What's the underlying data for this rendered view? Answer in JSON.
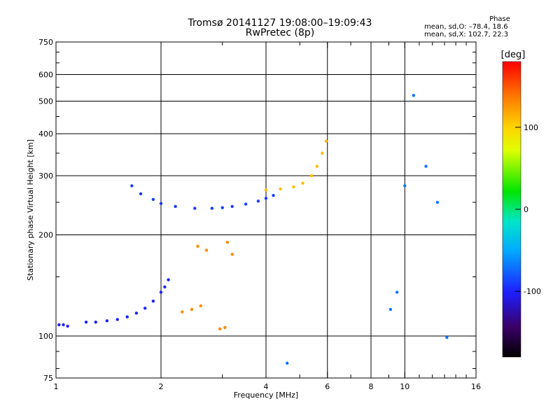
{
  "title": {
    "line1": "Tromsø 20141127 19:08:00–19:09:43",
    "line2": "RwPretec (8p)"
  },
  "phase_info": {
    "title": "Phase",
    "line1": "mean, sd,O: –78.4, 18.6",
    "line2": "mean, sd,X: 102.7, 22.3"
  },
  "chart_data": {
    "type": "scatter",
    "title": "Tromsø 20141127 19:08:00–19:09:43",
    "subtitle": "RwPretec (8p)",
    "xlabel": "Frequency [MHz]",
    "ylabel": "Stationary phase Virtual Height [km]",
    "x_scale": "log",
    "y_scale": "log",
    "xlim": [
      1,
      16
    ],
    "ylim": [
      75,
      750
    ],
    "x_ticks": [
      {
        "value": 1,
        "label": "1"
      },
      {
        "value": 2,
        "label": "2"
      },
      {
        "value": 4,
        "label": "4"
      },
      {
        "value": 6,
        "label": "6"
      },
      {
        "value": 8,
        "label": "8"
      },
      {
        "value": 10,
        "label": "10"
      },
      {
        "value": 16,
        "label": "16"
      }
    ],
    "y_ticks": [
      {
        "value": 75,
        "label": "75"
      },
      {
        "value": 100,
        "label": "100"
      },
      {
        "value": 200,
        "label": "200"
      },
      {
        "value": 300,
        "label": "300"
      },
      {
        "value": 400,
        "label": "400"
      },
      {
        "value": 500,
        "label": "500"
      },
      {
        "value": 600,
        "label": "600"
      },
      {
        "value": 750,
        "label": "750"
      }
    ],
    "grid_x": [
      2,
      4,
      6,
      8,
      10
    ],
    "grid_y": [
      100,
      200,
      300,
      400,
      500,
      600
    ],
    "colorbar": {
      "label": "[deg]",
      "min": -180,
      "max": 180,
      "ticks": [
        {
          "value": 100,
          "label": "100"
        },
        {
          "value": 0,
          "label": "0"
        },
        {
          "value": -100,
          "label": "-100"
        }
      ]
    },
    "series": [
      {
        "trace": "low E trace",
        "phase": -100,
        "points": [
          [
            1.02,
            108
          ],
          [
            1.05,
            108
          ],
          [
            1.08,
            107
          ],
          [
            1.22,
            110
          ],
          [
            1.3,
            110
          ],
          [
            1.4,
            111
          ],
          [
            1.5,
            112
          ],
          [
            1.6,
            114
          ],
          [
            1.7,
            117
          ],
          [
            1.8,
            121
          ],
          [
            1.9,
            127
          ],
          [
            2.0,
            135
          ],
          [
            2.05,
            140
          ],
          [
            2.1,
            147
          ]
        ]
      },
      {
        "trace": "F trace O mode",
        "phase": -90,
        "points": [
          [
            1.65,
            280
          ],
          [
            1.75,
            265
          ],
          [
            1.9,
            255
          ],
          [
            2.0,
            248
          ],
          [
            2.2,
            243
          ],
          [
            2.5,
            240
          ],
          [
            2.8,
            240
          ],
          [
            3.0,
            241
          ],
          [
            3.2,
            243
          ],
          [
            3.5,
            247
          ],
          [
            3.8,
            252
          ],
          [
            4.0,
            257
          ],
          [
            4.2,
            262
          ]
        ]
      },
      {
        "trace": "F trace X mode",
        "phase": 110,
        "points": [
          [
            4.0,
            272
          ],
          [
            4.4,
            274
          ],
          [
            4.8,
            278
          ],
          [
            5.1,
            285
          ],
          [
            5.4,
            300
          ],
          [
            5.6,
            320
          ],
          [
            5.8,
            350
          ],
          [
            5.95,
            380
          ]
        ]
      },
      {
        "trace": "sporadic orange patches",
        "phase": 130,
        "points": [
          [
            2.3,
            118
          ],
          [
            2.45,
            120
          ],
          [
            2.6,
            123
          ],
          [
            2.95,
            105
          ],
          [
            3.05,
            106
          ],
          [
            2.55,
            185
          ],
          [
            2.7,
            180
          ],
          [
            3.1,
            190
          ],
          [
            3.2,
            175
          ]
        ]
      },
      {
        "trace": "right edge scattered",
        "phase": -70,
        "points": [
          [
            9.1,
            120
          ],
          [
            9.5,
            135
          ],
          [
            10.0,
            280
          ],
          [
            10.6,
            520
          ],
          [
            11.5,
            320
          ],
          [
            12.4,
            250
          ],
          [
            13.2,
            99
          ],
          [
            4.6,
            83
          ]
        ]
      }
    ]
  }
}
